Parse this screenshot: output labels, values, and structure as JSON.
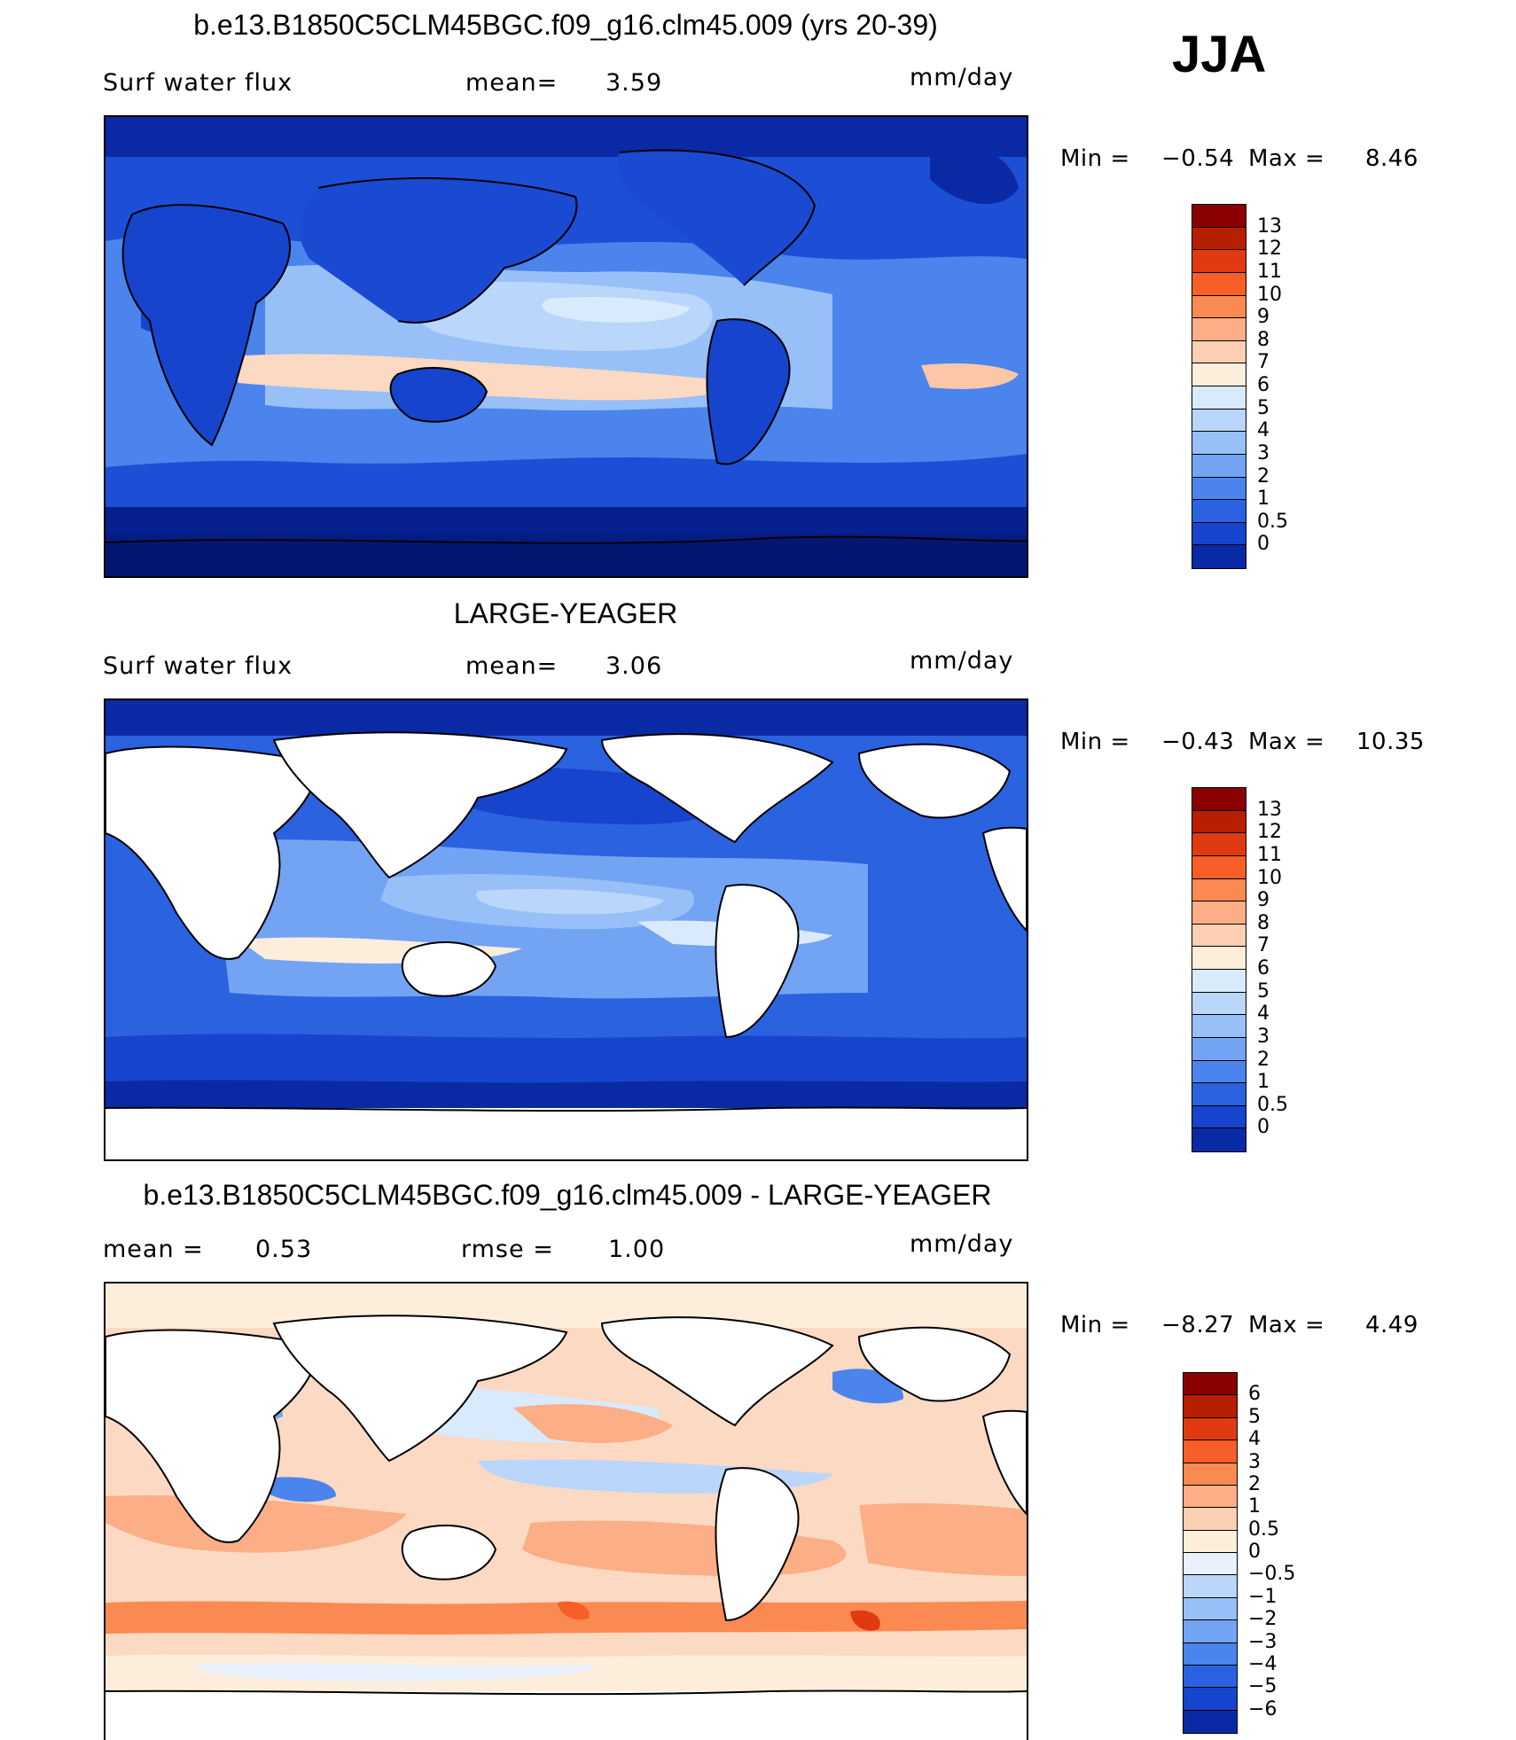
{
  "season": "JJA",
  "panels": [
    {
      "title": "b.e13.B1850C5CLM45BGC.f09_g16.clm45.009 (yrs 20-39)",
      "left_label": "Surf  water  flux",
      "mid_label": "mean=",
      "mid_value": "3.59",
      "units": "mm/day",
      "min_label": "Min  =",
      "min_value": "−0.54",
      "max_label": "Max  =",
      "max_value": "8.46",
      "land_masked": false,
      "colorbar": {
        "labels": [
          "13",
          "12",
          "11",
          "10",
          "9",
          "8",
          "7",
          "6",
          "5",
          "4",
          "3",
          "2",
          "1",
          "0.5",
          "0"
        ],
        "colors": [
          "#8b0000",
          "#b81e00",
          "#e03a12",
          "#f75e28",
          "#fb8a52",
          "#fcae86",
          "#fdcfb2",
          "#fdeedc",
          "#d8eafc",
          "#bad6fb",
          "#98c0f8",
          "#73a4f3",
          "#4a84ec",
          "#2b62e0",
          "#1744cc",
          "#0a2aa5"
        ]
      }
    },
    {
      "title": "LARGE-YEAGER",
      "left_label": "Surf  water  flux",
      "mid_label": "mean=",
      "mid_value": "3.06",
      "units": "mm/day",
      "min_label": "Min  =",
      "min_value": "−0.43",
      "max_label": "Max  =",
      "max_value": "10.35",
      "land_masked": true,
      "colorbar": {
        "labels": [
          "13",
          "12",
          "11",
          "10",
          "9",
          "8",
          "7",
          "6",
          "5",
          "4",
          "3",
          "2",
          "1",
          "0.5",
          "0"
        ],
        "colors": [
          "#8b0000",
          "#b81e00",
          "#e03a12",
          "#f75e28",
          "#fb8a52",
          "#fcae86",
          "#fdcfb2",
          "#fdeedc",
          "#d8eafc",
          "#bad6fb",
          "#98c0f8",
          "#73a4f3",
          "#4a84ec",
          "#2b62e0",
          "#1744cc",
          "#0a2aa5"
        ]
      }
    },
    {
      "title": "b.e13.B1850C5CLM45BGC.f09_g16.clm45.009 - LARGE-YEAGER",
      "left_label": "mean  =",
      "left_value": "0.53",
      "mid_label": "rmse  =",
      "mid_value": "1.00",
      "units": "mm/day",
      "min_label": "Min  =",
      "min_value": "−8.27",
      "max_label": "Max  =",
      "max_value": "4.49",
      "land_masked": true,
      "colorbar": {
        "labels": [
          "6",
          "5",
          "4",
          "3",
          "2",
          "1",
          "0.5",
          "0",
          "−0.5",
          "−1",
          "−2",
          "−3",
          "−4",
          "−5",
          "−6"
        ],
        "colors": [
          "#8b0000",
          "#b81e00",
          "#e03a12",
          "#f75e28",
          "#fb8a52",
          "#fcae86",
          "#fdcfb2",
          "#fdeedc",
          "#e8f1fd",
          "#bad6fb",
          "#98c0f8",
          "#73a4f3",
          "#4a84ec",
          "#2b62e0",
          "#1744cc",
          "#0a2aa5"
        ]
      }
    }
  ]
}
